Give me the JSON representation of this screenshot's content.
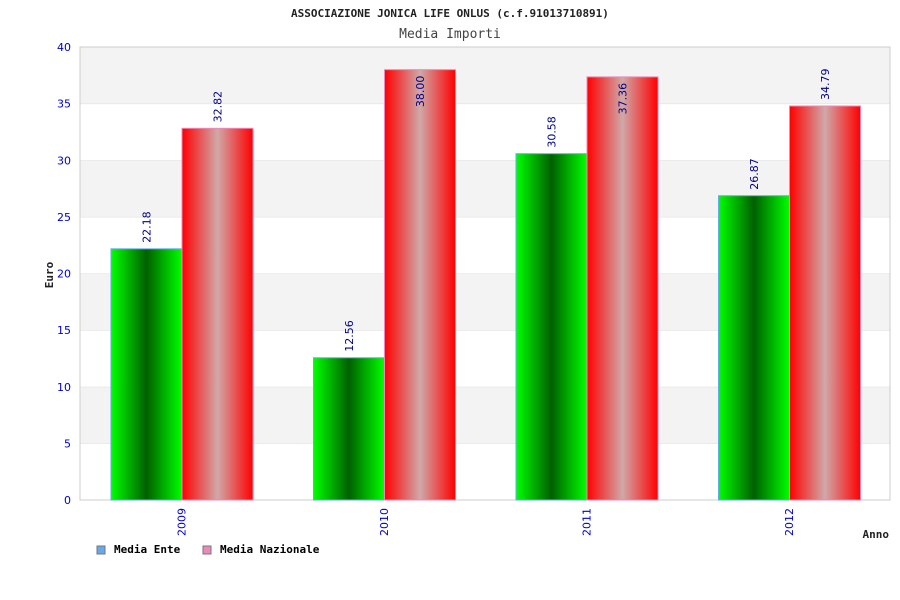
{
  "chart_data": {
    "type": "bar",
    "title": "ASSOCIAZIONE JONICA LIFE ONLUS (c.f.91013710891)",
    "subtitle": "Media Importi",
    "xlabel": "Anno",
    "ylabel": "Euro",
    "ylim": [
      0,
      40
    ],
    "yticks": [
      "0",
      "5",
      "10",
      "15",
      "20",
      "25",
      "30",
      "35",
      "40"
    ],
    "categories": [
      "2009",
      "2010",
      "2011",
      "2012"
    ],
    "series": [
      {
        "name": "Media Ente",
        "values": [
          22.18,
          12.56,
          30.58,
          26.87
        ],
        "labels": [
          "22.18",
          "12.56",
          "30.58",
          "26.87"
        ],
        "color": "#00cc00",
        "legend_color": "#66aaee"
      },
      {
        "name": "Media Nazionale",
        "values": [
          32.82,
          38.0,
          37.36,
          34.79
        ],
        "labels": [
          "32.82",
          "38.00",
          "37.36",
          "34.79"
        ],
        "color": "#ff0000",
        "legend_color": "#ee88bb"
      }
    ],
    "grid": true,
    "legend": "bottom-left"
  }
}
